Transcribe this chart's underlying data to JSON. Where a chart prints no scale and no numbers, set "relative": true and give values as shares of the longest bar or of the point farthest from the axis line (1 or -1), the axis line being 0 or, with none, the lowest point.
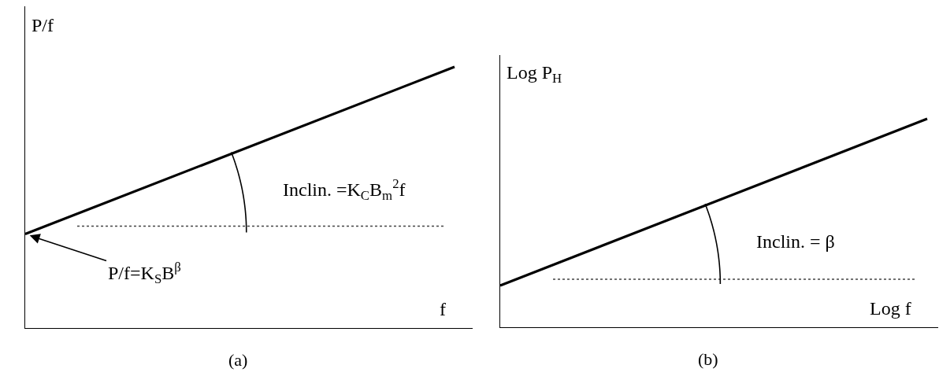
{
  "chart_data": [
    {
      "type": "line",
      "title": "(a)",
      "xlabel": "f",
      "ylabel": "P/f",
      "categories": [
        null,
        null
      ],
      "relative": true,
      "series": [
        {
          "color": "#000000",
          "values": [
            0.36,
            1
          ]
        }
      ],
      "ref_lines": [
        {
          "axis": "y",
          "value": 0.39,
          "color": "#444444",
          "line_style": "dotted"
        }
      ],
      "annotations": [
        "P/f=K$_{S}$B$^{β}$",
        "Inclin. =K$_{C}$B$_{m}$$^{2}$f"
      ]
    },
    {
      "type": "line",
      "title": "(b)",
      "xlabel": "Log f",
      "ylabel": "Log P$_{H}$",
      "categories": [
        null,
        null
      ],
      "relative": true,
      "series": [
        {
          "color": "#000000",
          "values": [
            0.2,
            1
          ]
        }
      ],
      "ref_lines": [
        {
          "axis": "y",
          "value": 0.23,
          "color": "#444444",
          "line_style": "dotted"
        }
      ],
      "annotations": [
        "Inclin. = β"
      ]
    }
  ]
}
